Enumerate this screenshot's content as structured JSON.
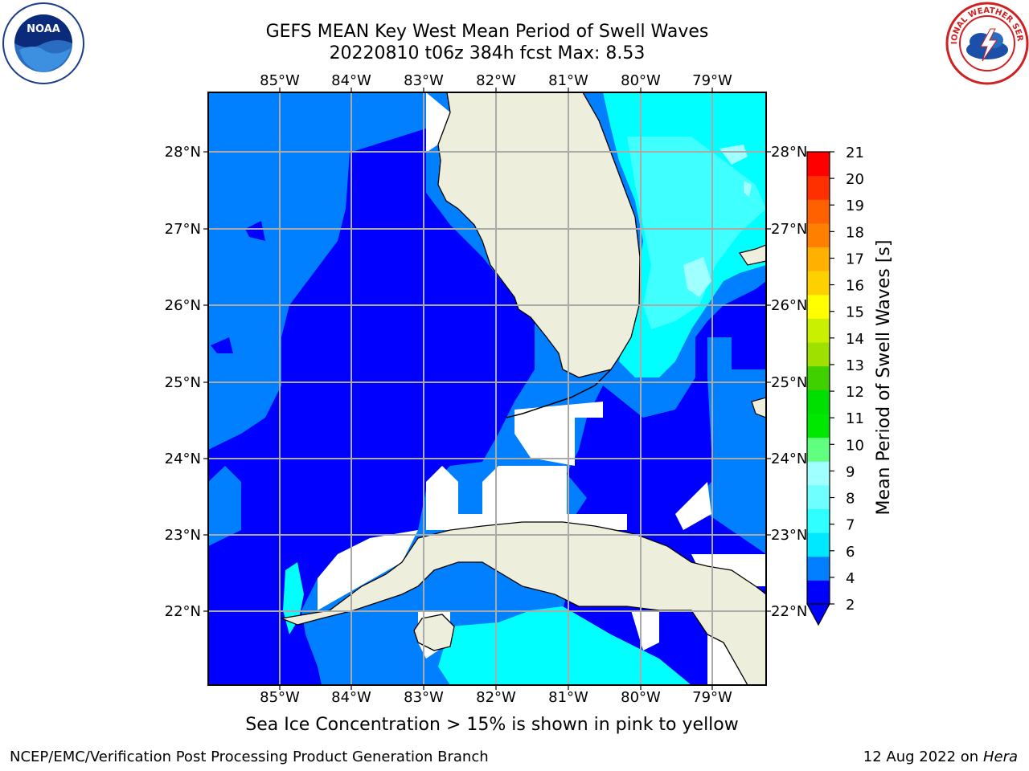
{
  "title": {
    "line1": "GEFS MEAN Key West Mean Period of Swell Waves",
    "line2": "20220810 t06z 384h fcst    Max: 8.53"
  },
  "map": {
    "lon_labels": [
      "85°W",
      "84°W",
      "83°W",
      "82°W",
      "81°W",
      "80°W",
      "79°W"
    ],
    "lat_labels": [
      "28°N",
      "27°N",
      "26°N",
      "25°N",
      "24°N",
      "23°N",
      "22°N"
    ],
    "colors": {
      "deep_blue": "#0000ff",
      "mid_blue": "#0080ff",
      "cyan": "#00ffff",
      "light_cyan": "#40ffff",
      "pale_cyan": "#a0ffff",
      "land": "#eeeedd",
      "grid": "#aaaaaa"
    }
  },
  "colorbar": {
    "label": "Mean Period of Swell Waves [s]",
    "ticks": [
      "2",
      "4",
      "6",
      "7",
      "8",
      "9",
      "10",
      "11",
      "12",
      "13",
      "14",
      "15",
      "16",
      "17",
      "18",
      "19",
      "20",
      "21"
    ],
    "colors": [
      "#0000ff",
      "#0080ff",
      "#00e8ff",
      "#30ffff",
      "#70ffff",
      "#a0ffff",
      "#60ff80",
      "#00e800",
      "#00e000",
      "#40d000",
      "#a0e000",
      "#c8f000",
      "#ffff00",
      "#ffd000",
      "#ffb000",
      "#ff8000",
      "#ff6000",
      "#ff3000",
      "#ff0000"
    ]
  },
  "note": "Sea Ice Concentration > 15% is shown in pink to yellow",
  "footer": {
    "left": "NCEP/EMC/Verification Post Processing Product Generation Branch",
    "date": "12 Aug 2022 on",
    "host": "Hera"
  },
  "logos": {
    "noaa_text": "NOAA",
    "nws_text": "NATIONAL WEATHER SERVICE"
  }
}
